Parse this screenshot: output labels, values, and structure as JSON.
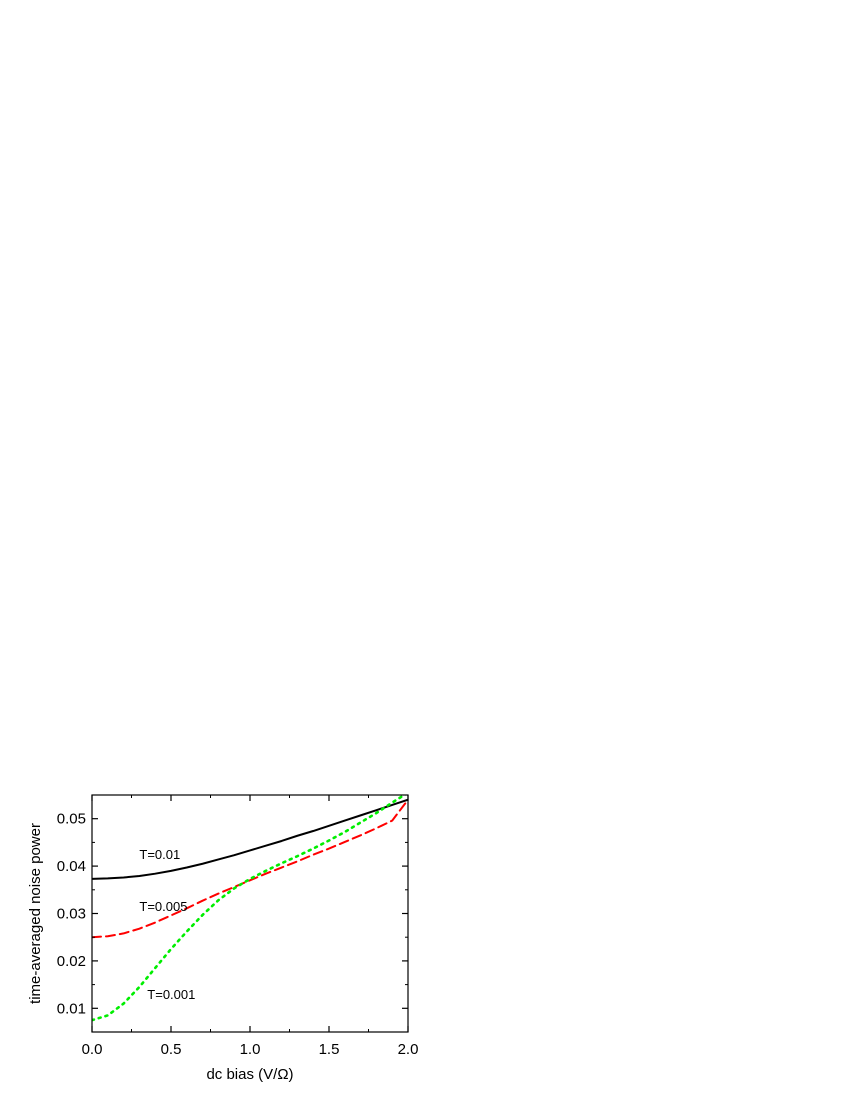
{
  "chart_data": {
    "type": "line",
    "xlabel": "dc bias (V/Ω)",
    "ylabel": "time-averaged noise power",
    "xlim": [
      0.0,
      2.0
    ],
    "ylim": [
      0.005,
      0.055
    ],
    "xticks": [
      0.0,
      0.5,
      1.0,
      1.5,
      2.0
    ],
    "xtick_labels": [
      "0.0",
      "0.5",
      "1.0",
      "1.5",
      "2.0"
    ],
    "yticks": [
      0.01,
      0.02,
      0.03,
      0.04,
      0.05
    ],
    "ytick_labels": [
      "0.01",
      "0.02",
      "0.03",
      "0.04",
      "0.05"
    ],
    "grid": false,
    "legend": "none",
    "series": [
      {
        "name": "T=0.01",
        "color": "#000000",
        "style": "solid",
        "x": [
          0.0,
          0.1,
          0.2,
          0.3,
          0.4,
          0.5,
          0.6,
          0.7,
          0.8,
          0.9,
          1.0,
          1.1,
          1.2,
          1.3,
          1.4,
          1.5,
          1.6,
          1.7,
          1.8,
          1.9,
          2.0
        ],
        "y": [
          0.0373,
          0.0374,
          0.0376,
          0.0379,
          0.0384,
          0.039,
          0.0397,
          0.0405,
          0.0414,
          0.0423,
          0.0433,
          0.0443,
          0.0453,
          0.0464,
          0.0474,
          0.0485,
          0.0496,
          0.0507,
          0.0518,
          0.0529,
          0.054
        ]
      },
      {
        "name": "T=0.005",
        "color": "#ff0000",
        "style": "dashed",
        "x": [
          0.0,
          0.1,
          0.2,
          0.3,
          0.4,
          0.5,
          0.6,
          0.7,
          0.8,
          0.9,
          1.0,
          1.1,
          1.2,
          1.3,
          1.4,
          1.5,
          1.6,
          1.7,
          1.8,
          1.9,
          2.0
        ],
        "y": [
          0.025,
          0.0252,
          0.0258,
          0.0268,
          0.0281,
          0.0296,
          0.0311,
          0.0327,
          0.0342,
          0.0356,
          0.037,
          0.0384,
          0.0397,
          0.041,
          0.0424,
          0.0437,
          0.0451,
          0.0465,
          0.048,
          0.0496,
          0.054
        ]
      },
      {
        "name": "T=0.001",
        "color": "#00ee00",
        "style": "dotted",
        "x": [
          0.0,
          0.1,
          0.2,
          0.3,
          0.4,
          0.5,
          0.6,
          0.7,
          0.8,
          0.9,
          1.0,
          1.1,
          1.2,
          1.3,
          1.4,
          1.5,
          1.6,
          1.7,
          1.8,
          1.9,
          2.0
        ],
        "y": [
          0.0075,
          0.0085,
          0.011,
          0.0145,
          0.0185,
          0.0225,
          0.0262,
          0.0297,
          0.0328,
          0.0353,
          0.0373,
          0.039,
          0.0406,
          0.0421,
          0.0437,
          0.0454,
          0.0472,
          0.0492,
          0.0512,
          0.0534,
          0.0555
        ]
      }
    ],
    "annotations": [
      {
        "text": "T=0.01",
        "x": 0.3,
        "y": 0.0415
      },
      {
        "text": "T=0.005",
        "x": 0.3,
        "y": 0.0305
      },
      {
        "text": "T=0.001",
        "x": 0.35,
        "y": 0.012
      }
    ]
  }
}
